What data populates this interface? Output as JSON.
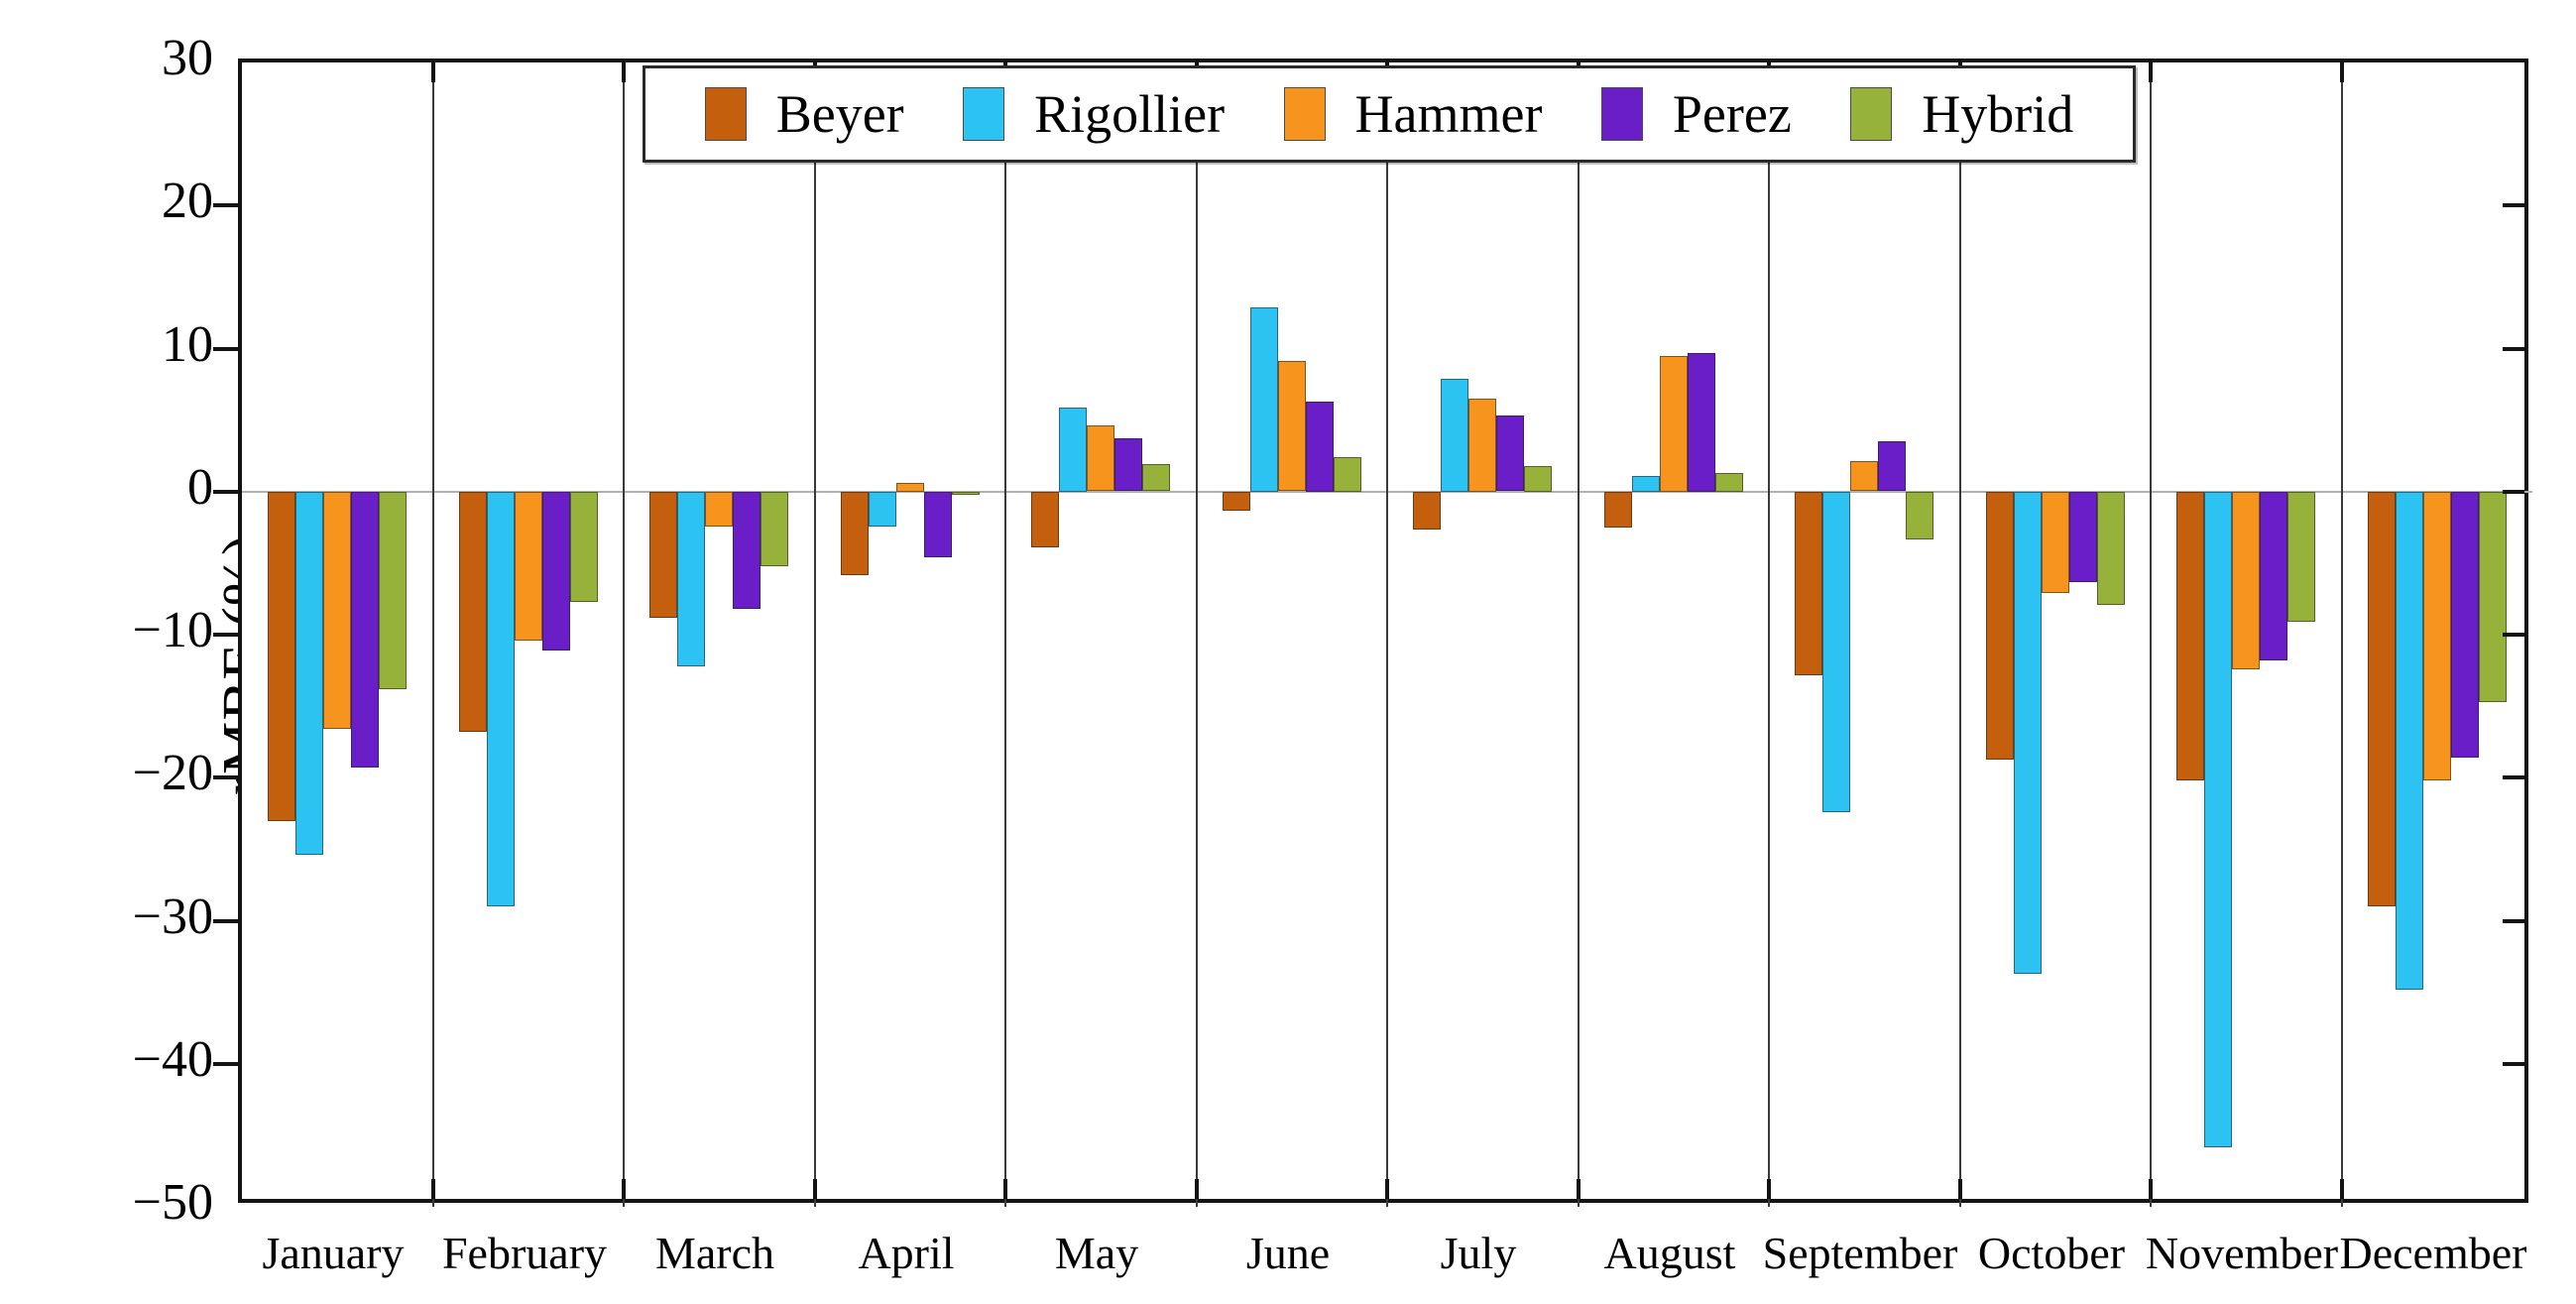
{
  "figure": {
    "ylabel": "rMBE (%)"
  },
  "chart_data": {
    "type": "bar",
    "title": "",
    "xlabel": "",
    "ylabel": "rMBE (%)",
    "ylim": [
      -50,
      30
    ],
    "ytick_step": 10,
    "grid": "vertical month separators",
    "zero_line": true,
    "legend_position": "top inside",
    "categories": [
      "January",
      "February",
      "March",
      "April",
      "May",
      "June",
      "July",
      "August",
      "September",
      "October",
      "November",
      "December"
    ],
    "series": [
      {
        "name": "Beyer",
        "color": "#C4600D",
        "values": [
          -23.0,
          -16.8,
          -8.8,
          -5.8,
          -3.9,
          -1.3,
          -2.6,
          -2.5,
          -12.8,
          -18.7,
          -20.2,
          -29.0
        ]
      },
      {
        "name": "Rigollier",
        "color": "#2CC3F2",
        "values": [
          -25.4,
          -29.0,
          -12.2,
          -2.4,
          5.9,
          12.9,
          7.9,
          1.1,
          -22.4,
          -33.7,
          -45.8,
          -34.8
        ]
      },
      {
        "name": "Hammer",
        "color": "#F7941D",
        "values": [
          -16.6,
          -10.4,
          -2.4,
          0.6,
          4.6,
          9.1,
          6.5,
          9.5,
          2.1,
          -7.1,
          -12.4,
          -20.2
        ]
      },
      {
        "name": "Perez",
        "color": "#6A1EC8",
        "values": [
          -19.3,
          -11.1,
          -8.2,
          -4.6,
          3.7,
          6.3,
          5.3,
          9.7,
          3.5,
          -6.3,
          -11.8,
          -18.6
        ]
      },
      {
        "name": "Hybrid",
        "color": "#97B23A",
        "values": [
          -13.8,
          -7.7,
          -5.2,
          -0.2,
          1.9,
          2.4,
          1.8,
          1.3,
          -3.3,
          -7.9,
          -9.1,
          -14.7
        ]
      }
    ]
  }
}
